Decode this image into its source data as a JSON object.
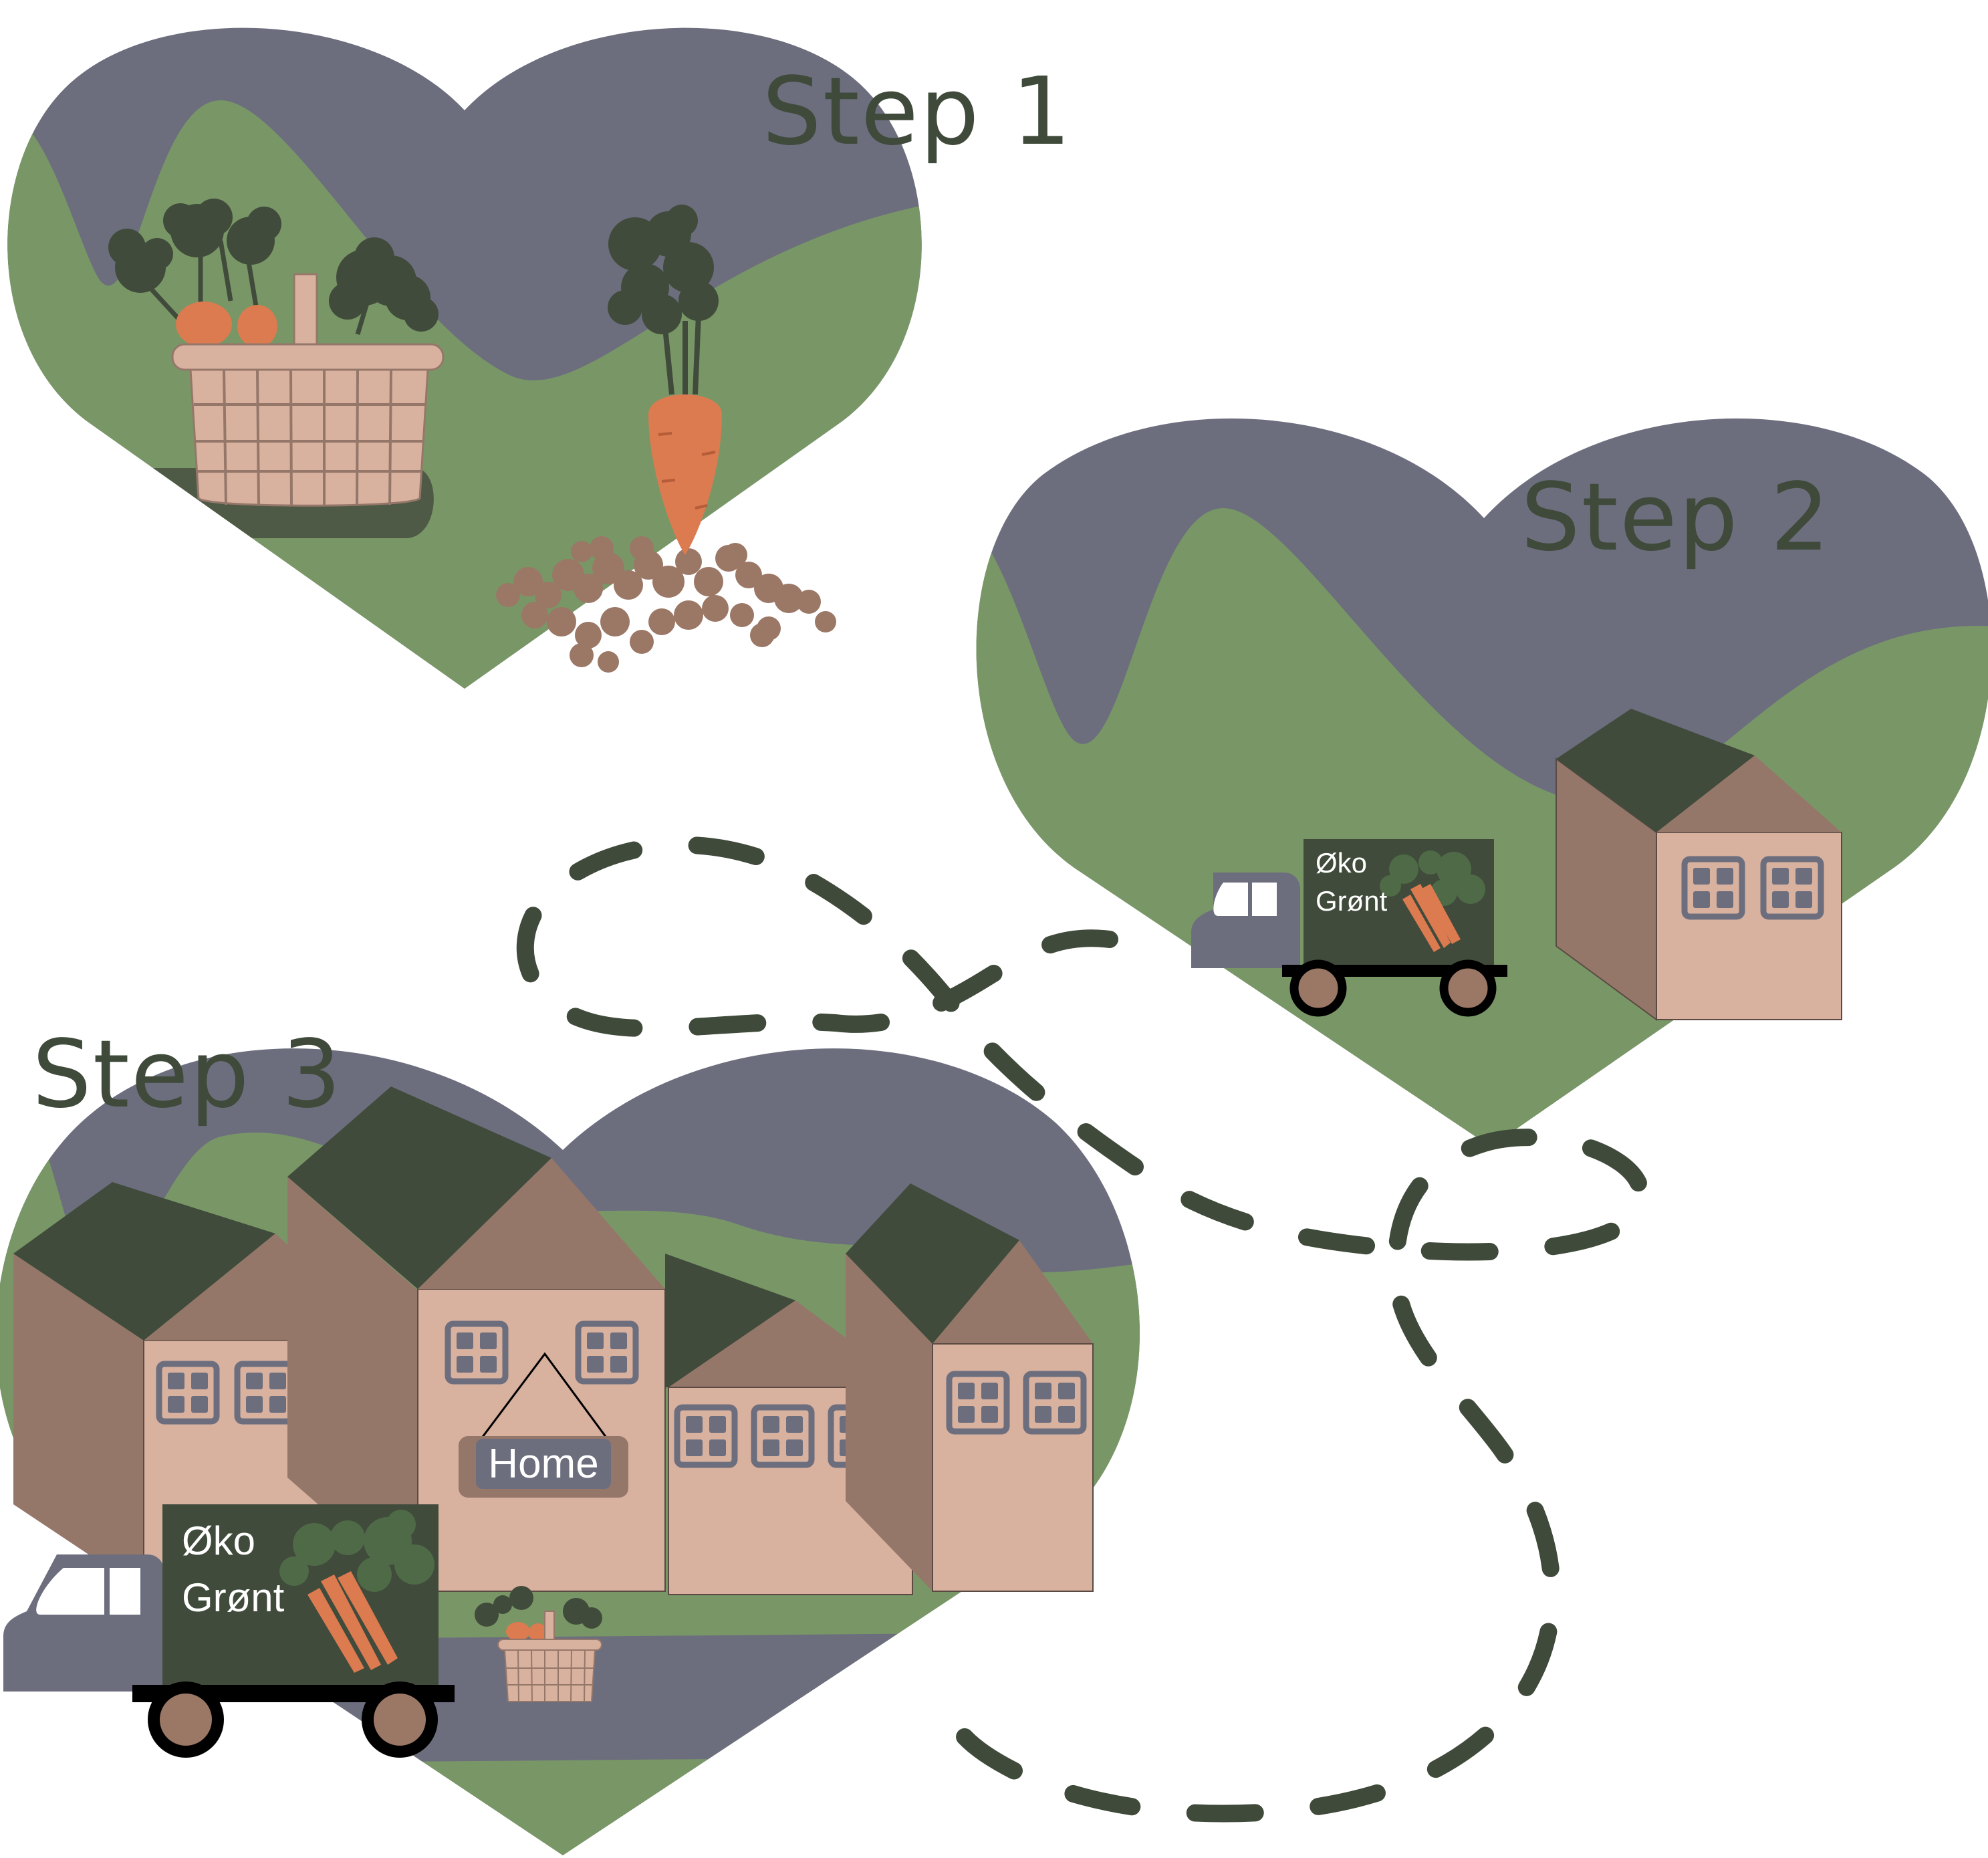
{
  "steps": [
    {
      "label": "Step 1"
    },
    {
      "label": "Step 2"
    },
    {
      "label": "Step 3"
    }
  ],
  "truck": {
    "line1": "Øko",
    "line2": "Grønt"
  },
  "home_sign": "Home",
  "colors": {
    "sky": "#6c6e7e",
    "grass": "#799766",
    "dark_green": "#404b3b",
    "wall_dark": "#95776a",
    "wall_light": "#d8b19f",
    "carrot": "#dc7a50",
    "soil": "#9b7766",
    "basket": "#d8b19f",
    "path": "#3f4a3a"
  }
}
